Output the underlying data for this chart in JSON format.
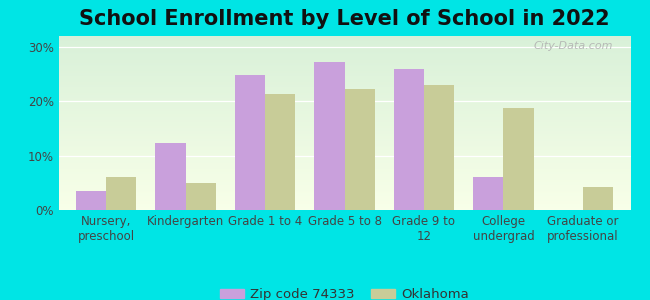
{
  "title": "School Enrollment by Level of School in 2022",
  "categories": [
    "Nursery,\npreschool",
    "Kindergarten",
    "Grade 1 to 4",
    "Grade 5 to 8",
    "Grade 9 to\n12",
    "College\nundergrad",
    "Graduate or\nprofessional"
  ],
  "zip_values": [
    3.5,
    12.3,
    24.8,
    27.2,
    26.0,
    6.0,
    0.0
  ],
  "ok_values": [
    6.0,
    5.0,
    21.3,
    22.3,
    23.0,
    18.8,
    4.2
  ],
  "zip_color": "#c9a0dc",
  "ok_color": "#c8cc98",
  "background_color": "#00e5e5",
  "plot_bg_top": "#d8f0d8",
  "plot_bg_bottom": "#f8ffe8",
  "ylim": [
    0,
    32
  ],
  "yticks": [
    0,
    10,
    20,
    30
  ],
  "legend_zip": "Zip code 74333",
  "legend_ok": "Oklahoma",
  "bar_width": 0.38,
  "watermark": "City-Data.com",
  "title_fontsize": 15,
  "axis_fontsize": 8.5,
  "legend_fontsize": 9.5
}
